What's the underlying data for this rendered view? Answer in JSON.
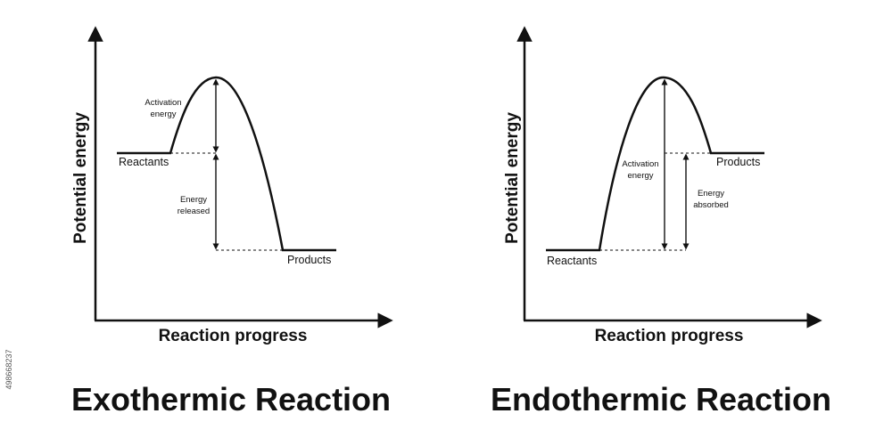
{
  "exothermic": {
    "title": "Exothermic Reaction",
    "xlabel": "Reaction progress",
    "ylabel": "Potential energy",
    "reactants": "Reactants",
    "products": "Products",
    "activation_line1": "Activation",
    "activation_line2": "energy",
    "delta_line1": "Energy",
    "delta_line2": "released"
  },
  "endothermic": {
    "title": "Endothermic Reaction",
    "xlabel": "Reaction progress",
    "ylabel": "Potential energy",
    "reactants": "Reactants",
    "products": "Products",
    "activation_line1": "Activation",
    "activation_line2": "energy",
    "delta_line1": "Energy",
    "delta_line2": "absorbed"
  },
  "stock_id": "498668237"
}
